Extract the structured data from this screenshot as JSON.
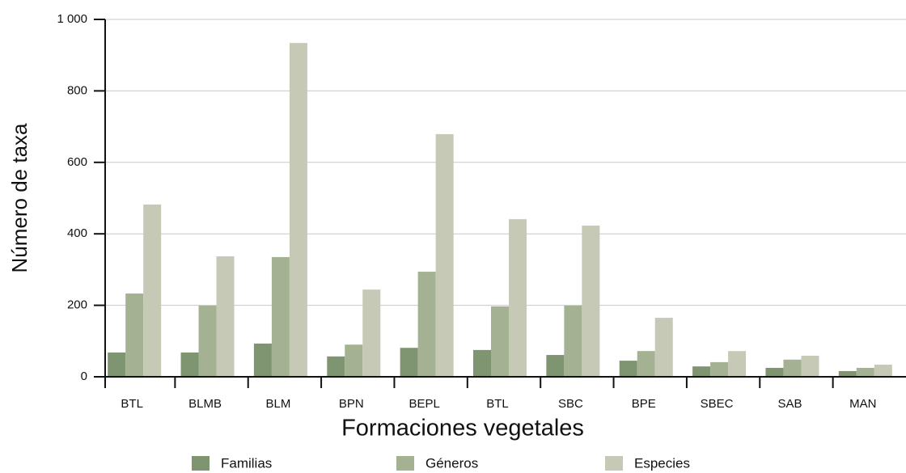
{
  "chart_data": {
    "type": "bar",
    "x_label": "Formaciones vegetales",
    "y_label": "Número de taxa",
    "categories": [
      "BTL",
      "BLMB",
      "BLM",
      "BPN",
      "BEPL",
      "BTL",
      "SBC",
      "BPE",
      "SBEC",
      "SAB",
      "MAN"
    ],
    "series": [
      {
        "name": "Familias",
        "color": "#7f9470",
        "values": [
          68,
          68,
          93,
          57,
          81,
          75,
          61,
          45,
          29,
          25,
          16
        ]
      },
      {
        "name": "Géneros",
        "color": "#a4b293",
        "values": [
          233,
          199,
          335,
          90,
          294,
          197,
          199,
          72,
          41,
          48,
          25
        ]
      },
      {
        "name": "Especies",
        "color": "#c6c9b6",
        "values": [
          482,
          337,
          934,
          244,
          679,
          441,
          423,
          165,
          72,
          59,
          34
        ]
      }
    ],
    "ylim": [
      0,
      1000
    ],
    "yticks": [
      0,
      200,
      400,
      600,
      800,
      {
        "value": 1000,
        "label": "1 000"
      }
    ],
    "grid": true,
    "legend": "bottom"
  }
}
